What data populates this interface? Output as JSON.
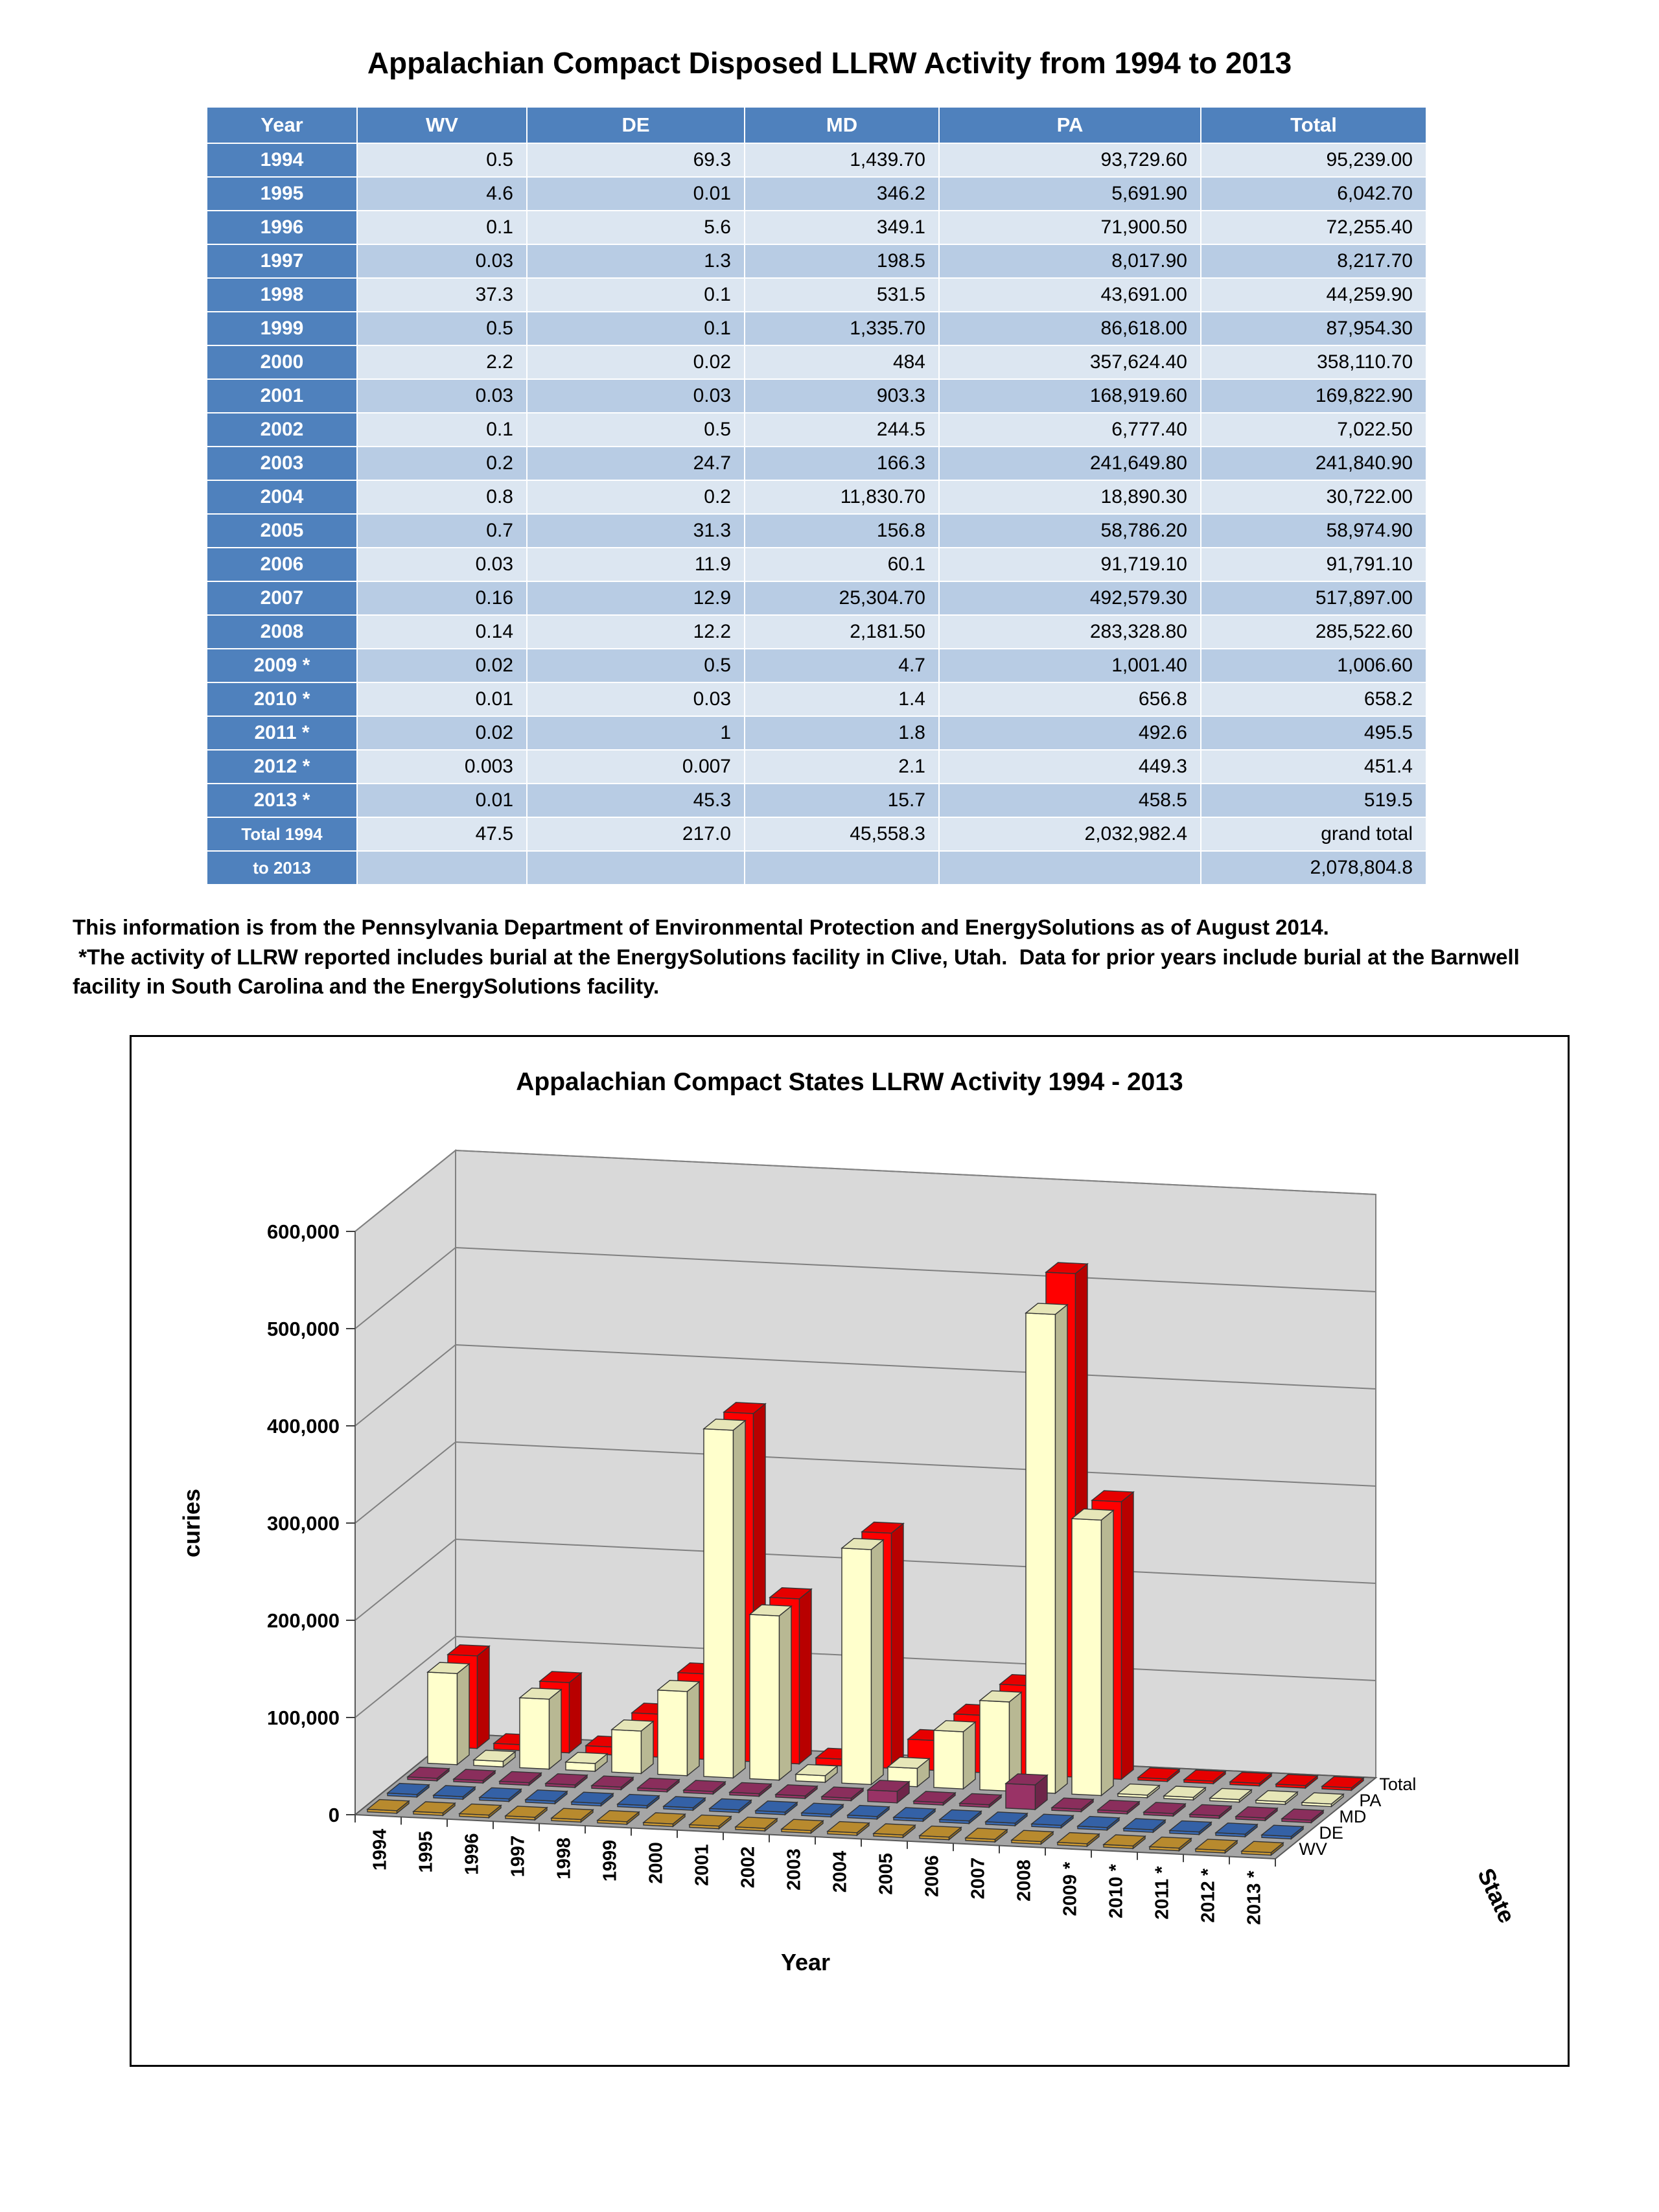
{
  "page": {
    "title": "Appalachian Compact Disposed LLRW Activity from 1994 to 2013",
    "notes": [
      "This information is from the Pennsylvania Department of Environmental Protection and EnergySolutions as of August 2014.",
      " *The activity of LLRW reported includes burial at the EnergySolutions facility in Clive, Utah.  Data for prior years include burial at the Barnwell facility in South Carolina and the EnergySolutions facility."
    ]
  },
  "table": {
    "columns": [
      "Year",
      "WV",
      "DE",
      "MD",
      "PA",
      "Total"
    ],
    "rows": [
      [
        "1994",
        "0.5",
        "69.3",
        "1,439.70",
        "93,729.60",
        "95,239.00"
      ],
      [
        "1995",
        "4.6",
        "0.01",
        "346.2",
        "5,691.90",
        "6,042.70"
      ],
      [
        "1996",
        "0.1",
        "5.6",
        "349.1",
        "71,900.50",
        "72,255.40"
      ],
      [
        "1997",
        "0.03",
        "1.3",
        "198.5",
        "8,017.90",
        "8,217.70"
      ],
      [
        "1998",
        "37.3",
        "0.1",
        "531.5",
        "43,691.00",
        "44,259.90"
      ],
      [
        "1999",
        "0.5",
        "0.1",
        "1,335.70",
        "86,618.00",
        "87,954.30"
      ],
      [
        "2000",
        "2.2",
        "0.02",
        "484",
        "357,624.40",
        "358,110.70"
      ],
      [
        "2001",
        "0.03",
        "0.03",
        "903.3",
        "168,919.60",
        "169,822.90"
      ],
      [
        "2002",
        "0.1",
        "0.5",
        "244.5",
        "6,777.40",
        "7,022.50"
      ],
      [
        "2003",
        "0.2",
        "24.7",
        "166.3",
        "241,649.80",
        "241,840.90"
      ],
      [
        "2004",
        "0.8",
        "0.2",
        "11,830.70",
        "18,890.30",
        "30,722.00"
      ],
      [
        "2005",
        "0.7",
        "31.3",
        "156.8",
        "58,786.20",
        "58,974.90"
      ],
      [
        "2006",
        "0.03",
        "11.9",
        "60.1",
        "91,719.10",
        "91,791.10"
      ],
      [
        "2007",
        "0.16",
        "12.9",
        "25,304.70",
        "492,579.30",
        "517,897.00"
      ],
      [
        "2008",
        "0.14",
        "12.2",
        "2,181.50",
        "283,328.80",
        "285,522.60"
      ],
      [
        "2009 *",
        "0.02",
        "0.5",
        "4.7",
        "1,001.40",
        "1,006.60"
      ],
      [
        "2010 *",
        "0.01",
        "0.03",
        "1.4",
        "656.8",
        "658.2"
      ],
      [
        "2011 *",
        "0.02",
        "1",
        "1.8",
        "492.6",
        "495.5"
      ],
      [
        "2012 *",
        "0.003",
        "0.007",
        "2.1",
        "449.3",
        "451.4"
      ],
      [
        "2013 *",
        "0.01",
        "45.3",
        "15.7",
        "458.5",
        "519.5"
      ]
    ],
    "total": {
      "label_line1": "Total 1994",
      "label_line2": "to 2013",
      "values": [
        "47.5",
        "217.0",
        "45,558.3",
        "2,032,982.4"
      ],
      "grand_total_label": "grand total",
      "grand_total_value": "2,078,804.8"
    }
  },
  "chart_data": {
    "type": "bar",
    "subtype": "3d-bar",
    "title": "Appalachian Compact States LLRW Activity 1994 - 2013",
    "xlabel": "Year",
    "ylabel": "curies",
    "series_axis_label": "State",
    "grid": true,
    "legend_position": "right-of-plot",
    "ylim": [
      0,
      600000
    ],
    "ytick_step": 100000,
    "ytick_labels": [
      "0",
      "100,000",
      "200,000",
      "300,000",
      "400,000",
      "500,000",
      "600,000"
    ],
    "categories": [
      "1994",
      "1995",
      "1996",
      "1997",
      "1998",
      "1999",
      "2000",
      "2001",
      "2002",
      "2003",
      "2004",
      "2005",
      "2006",
      "2007",
      "2008",
      "2009 *",
      "2010 *",
      "2011 *",
      "2012 *",
      "2013 *"
    ],
    "series": [
      {
        "name": "WV",
        "color": "#CC9933",
        "values": [
          0.5,
          4.6,
          0.1,
          0.03,
          37.3,
          0.5,
          2.2,
          0.03,
          0.1,
          0.2,
          0.8,
          0.7,
          0.03,
          0.16,
          0.14,
          0.02,
          0.01,
          0.02,
          0.003,
          0.01
        ]
      },
      {
        "name": "DE",
        "color": "#3A6CB8",
        "values": [
          69.3,
          0.01,
          5.6,
          1.3,
          0.1,
          0.1,
          0.02,
          0.03,
          0.5,
          24.7,
          0.2,
          31.3,
          11.9,
          12.9,
          12.2,
          0.5,
          0.03,
          1,
          0.007,
          45.3
        ]
      },
      {
        "name": "MD",
        "color": "#993366",
        "values": [
          1439.7,
          346.2,
          349.1,
          198.5,
          531.5,
          1335.7,
          484,
          903.3,
          244.5,
          166.3,
          11830.7,
          156.8,
          60.1,
          25304.7,
          2181.5,
          4.7,
          1.4,
          1.8,
          2.1,
          15.7
        ]
      },
      {
        "name": "PA",
        "color": "#FFFFCC",
        "values": [
          93729.6,
          5691.9,
          71900.5,
          8017.9,
          43691,
          86618,
          357624.4,
          168919.6,
          6777.4,
          241649.8,
          18890.3,
          58786.2,
          91719.1,
          492579.3,
          283328.8,
          1001.4,
          656.8,
          492.6,
          449.3,
          458.5
        ]
      },
      {
        "name": "Total",
        "color": "#FF0000",
        "values": [
          95239,
          6042.7,
          72255.4,
          8217.7,
          44259.9,
          87954.3,
          358110.7,
          169822.9,
          7022.5,
          241840.9,
          30722,
          58974.9,
          91791.1,
          517897,
          285522.6,
          1006.6,
          658.2,
          495.5,
          451.4,
          519.5
        ]
      }
    ]
  }
}
